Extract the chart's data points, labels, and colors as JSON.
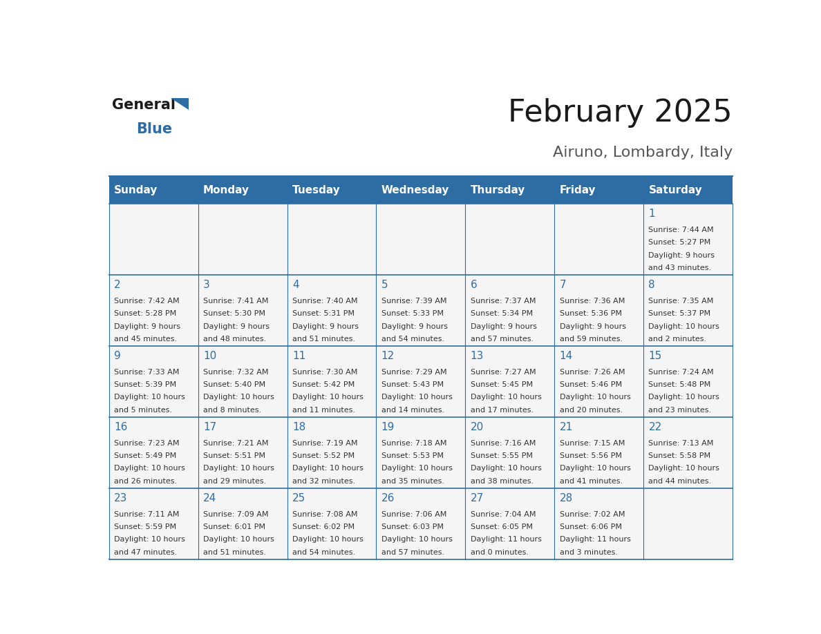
{
  "title": "February 2025",
  "subtitle": "Airuno, Lombardy, Italy",
  "header_color": "#2E6DA4",
  "header_text_color": "#FFFFFF",
  "text_color": "#333333",
  "line_color": "#2E6DA4",
  "days_of_week": [
    "Sunday",
    "Monday",
    "Tuesday",
    "Wednesday",
    "Thursday",
    "Friday",
    "Saturday"
  ],
  "calendar_data": [
    [
      null,
      null,
      null,
      null,
      null,
      null,
      {
        "day": "1",
        "sunrise": "7:44 AM",
        "sunset": "5:27 PM",
        "daylight_line1": "9 hours",
        "daylight_line2": "and 43 minutes."
      }
    ],
    [
      {
        "day": "2",
        "sunrise": "7:42 AM",
        "sunset": "5:28 PM",
        "daylight_line1": "9 hours",
        "daylight_line2": "and 45 minutes."
      },
      {
        "day": "3",
        "sunrise": "7:41 AM",
        "sunset": "5:30 PM",
        "daylight_line1": "9 hours",
        "daylight_line2": "and 48 minutes."
      },
      {
        "day": "4",
        "sunrise": "7:40 AM",
        "sunset": "5:31 PM",
        "daylight_line1": "9 hours",
        "daylight_line2": "and 51 minutes."
      },
      {
        "day": "5",
        "sunrise": "7:39 AM",
        "sunset": "5:33 PM",
        "daylight_line1": "9 hours",
        "daylight_line2": "and 54 minutes."
      },
      {
        "day": "6",
        "sunrise": "7:37 AM",
        "sunset": "5:34 PM",
        "daylight_line1": "9 hours",
        "daylight_line2": "and 57 minutes."
      },
      {
        "day": "7",
        "sunrise": "7:36 AM",
        "sunset": "5:36 PM",
        "daylight_line1": "9 hours",
        "daylight_line2": "and 59 minutes."
      },
      {
        "day": "8",
        "sunrise": "7:35 AM",
        "sunset": "5:37 PM",
        "daylight_line1": "10 hours",
        "daylight_line2": "and 2 minutes."
      }
    ],
    [
      {
        "day": "9",
        "sunrise": "7:33 AM",
        "sunset": "5:39 PM",
        "daylight_line1": "10 hours",
        "daylight_line2": "and 5 minutes."
      },
      {
        "day": "10",
        "sunrise": "7:32 AM",
        "sunset": "5:40 PM",
        "daylight_line1": "10 hours",
        "daylight_line2": "and 8 minutes."
      },
      {
        "day": "11",
        "sunrise": "7:30 AM",
        "sunset": "5:42 PM",
        "daylight_line1": "10 hours",
        "daylight_line2": "and 11 minutes."
      },
      {
        "day": "12",
        "sunrise": "7:29 AM",
        "sunset": "5:43 PM",
        "daylight_line1": "10 hours",
        "daylight_line2": "and 14 minutes."
      },
      {
        "day": "13",
        "sunrise": "7:27 AM",
        "sunset": "5:45 PM",
        "daylight_line1": "10 hours",
        "daylight_line2": "and 17 minutes."
      },
      {
        "day": "14",
        "sunrise": "7:26 AM",
        "sunset": "5:46 PM",
        "daylight_line1": "10 hours",
        "daylight_line2": "and 20 minutes."
      },
      {
        "day": "15",
        "sunrise": "7:24 AM",
        "sunset": "5:48 PM",
        "daylight_line1": "10 hours",
        "daylight_line2": "and 23 minutes."
      }
    ],
    [
      {
        "day": "16",
        "sunrise": "7:23 AM",
        "sunset": "5:49 PM",
        "daylight_line1": "10 hours",
        "daylight_line2": "and 26 minutes."
      },
      {
        "day": "17",
        "sunrise": "7:21 AM",
        "sunset": "5:51 PM",
        "daylight_line1": "10 hours",
        "daylight_line2": "and 29 minutes."
      },
      {
        "day": "18",
        "sunrise": "7:19 AM",
        "sunset": "5:52 PM",
        "daylight_line1": "10 hours",
        "daylight_line2": "and 32 minutes."
      },
      {
        "day": "19",
        "sunrise": "7:18 AM",
        "sunset": "5:53 PM",
        "daylight_line1": "10 hours",
        "daylight_line2": "and 35 minutes."
      },
      {
        "day": "20",
        "sunrise": "7:16 AM",
        "sunset": "5:55 PM",
        "daylight_line1": "10 hours",
        "daylight_line2": "and 38 minutes."
      },
      {
        "day": "21",
        "sunrise": "7:15 AM",
        "sunset": "5:56 PM",
        "daylight_line1": "10 hours",
        "daylight_line2": "and 41 minutes."
      },
      {
        "day": "22",
        "sunrise": "7:13 AM",
        "sunset": "5:58 PM",
        "daylight_line1": "10 hours",
        "daylight_line2": "and 44 minutes."
      }
    ],
    [
      {
        "day": "23",
        "sunrise": "7:11 AM",
        "sunset": "5:59 PM",
        "daylight_line1": "10 hours",
        "daylight_line2": "and 47 minutes."
      },
      {
        "day": "24",
        "sunrise": "7:09 AM",
        "sunset": "6:01 PM",
        "daylight_line1": "10 hours",
        "daylight_line2": "and 51 minutes."
      },
      {
        "day": "25",
        "sunrise": "7:08 AM",
        "sunset": "6:02 PM",
        "daylight_line1": "10 hours",
        "daylight_line2": "and 54 minutes."
      },
      {
        "day": "26",
        "sunrise": "7:06 AM",
        "sunset": "6:03 PM",
        "daylight_line1": "10 hours",
        "daylight_line2": "and 57 minutes."
      },
      {
        "day": "27",
        "sunrise": "7:04 AM",
        "sunset": "6:05 PM",
        "daylight_line1": "11 hours",
        "daylight_line2": "and 0 minutes."
      },
      {
        "day": "28",
        "sunrise": "7:02 AM",
        "sunset": "6:06 PM",
        "daylight_line1": "11 hours",
        "daylight_line2": "and 3 minutes."
      },
      null
    ]
  ],
  "logo_general_color": "#1a1a1a",
  "logo_blue_color": "#2E6DA4",
  "logo_triangle_color": "#2E6DA4",
  "title_color": "#1a1a1a",
  "subtitle_color": "#555555",
  "day_number_color": "#2E6DA4",
  "cell_bg_color": "#f5f5f5",
  "title_fontsize": 32,
  "subtitle_fontsize": 16,
  "header_fontsize": 11,
  "day_num_fontsize": 11,
  "cell_text_fontsize": 8
}
